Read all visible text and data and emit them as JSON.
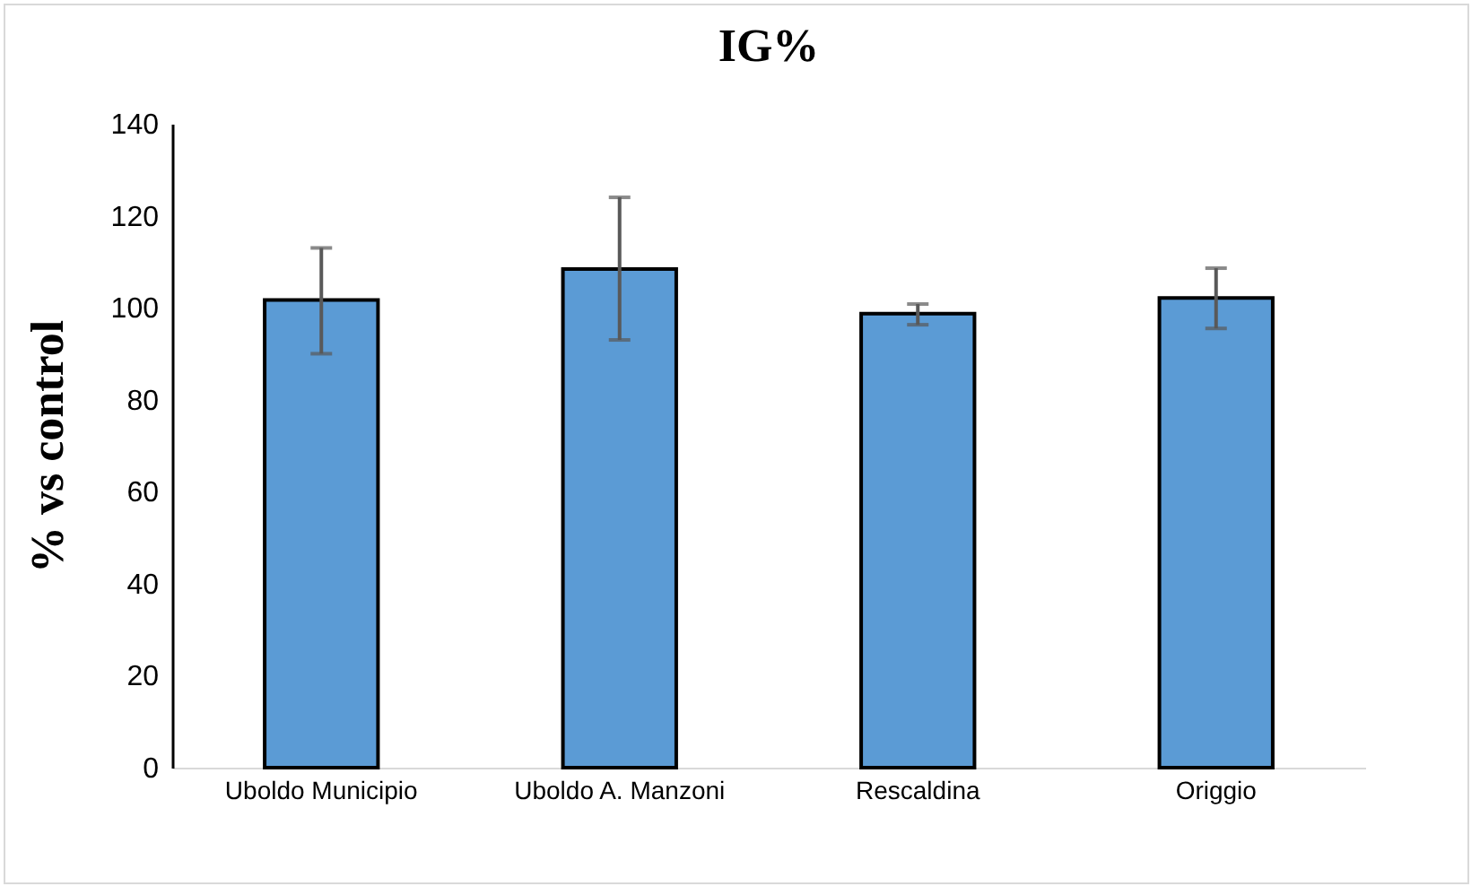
{
  "chart_data": {
    "type": "bar",
    "title": "IG%",
    "ylabel": "% vs control",
    "categories": [
      "Uboldo Municipio",
      "Uboldo A. Manzoni",
      "Rescaldina",
      "Origgio"
    ],
    "values": [
      101.7,
      108.4,
      98.7,
      102.1
    ],
    "errors": [
      [
        90,
        113
      ],
      [
        93,
        124
      ],
      [
        96.3,
        100.8
      ],
      [
        95.5,
        108.6
      ]
    ],
    "color": "#5b9bd5",
    "ylim": [
      0,
      140
    ],
    "yticks": [
      0,
      20,
      40,
      60,
      80,
      100,
      120,
      140
    ],
    "grid": false
  }
}
